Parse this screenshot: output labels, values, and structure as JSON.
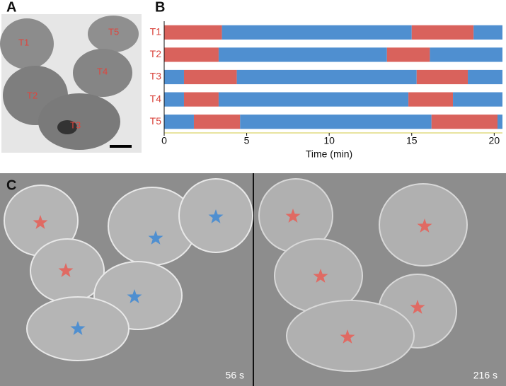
{
  "panels": {
    "a": {
      "label": "A",
      "tissue_labels": [
        "T1",
        "T2",
        "T3",
        "T4",
        "T5"
      ]
    },
    "c": {
      "label": "C",
      "times": [
        "56 s",
        "216 s"
      ]
    }
  },
  "chart_data": {
    "type": "timeline",
    "panel_label": "B",
    "x_label": "Time (min)",
    "xlim": [
      0,
      20.5
    ],
    "xticks": [
      0,
      5,
      10,
      15,
      20
    ],
    "rows": [
      {
        "name": "T1",
        "segments": [
          {
            "start": 0,
            "end": 3.5,
            "color": "#d9625c"
          },
          {
            "start": 3.5,
            "end": 15.0,
            "color": "#4f8fd0"
          },
          {
            "start": 15.0,
            "end": 18.75,
            "color": "#d9625c"
          },
          {
            "start": 18.75,
            "end": 20.5,
            "color": "#4f8fd0"
          }
        ]
      },
      {
        "name": "T2",
        "segments": [
          {
            "start": 0,
            "end": 3.3,
            "color": "#d9625c"
          },
          {
            "start": 3.3,
            "end": 13.5,
            "color": "#4f8fd0"
          },
          {
            "start": 13.5,
            "end": 16.1,
            "color": "#d9625c"
          },
          {
            "start": 16.1,
            "end": 20.5,
            "color": "#4f8fd0"
          }
        ]
      },
      {
        "name": "T3",
        "segments": [
          {
            "start": 0,
            "end": 1.2,
            "color": "#4f8fd0"
          },
          {
            "start": 1.2,
            "end": 4.4,
            "color": "#d9625c"
          },
          {
            "start": 4.4,
            "end": 15.3,
            "color": "#4f8fd0"
          },
          {
            "start": 15.3,
            "end": 18.4,
            "color": "#d9625c"
          },
          {
            "start": 18.4,
            "end": 20.5,
            "color": "#4f8fd0"
          }
        ]
      },
      {
        "name": "T4",
        "segments": [
          {
            "start": 0,
            "end": 1.2,
            "color": "#4f8fd0"
          },
          {
            "start": 1.2,
            "end": 3.3,
            "color": "#d9625c"
          },
          {
            "start": 3.3,
            "end": 14.8,
            "color": "#4f8fd0"
          },
          {
            "start": 14.8,
            "end": 17.5,
            "color": "#d9625c"
          },
          {
            "start": 17.5,
            "end": 20.5,
            "color": "#4f8fd0"
          }
        ]
      },
      {
        "name": "T5",
        "segments": [
          {
            "start": 0,
            "end": 1.8,
            "color": "#4f8fd0"
          },
          {
            "start": 1.8,
            "end": 4.6,
            "color": "#d9625c"
          },
          {
            "start": 4.6,
            "end": 16.2,
            "color": "#4f8fd0"
          },
          {
            "start": 16.2,
            "end": 20.2,
            "color": "#d9625c"
          },
          {
            "start": 20.2,
            "end": 20.5,
            "color": "#4f8fd0"
          }
        ]
      }
    ]
  }
}
